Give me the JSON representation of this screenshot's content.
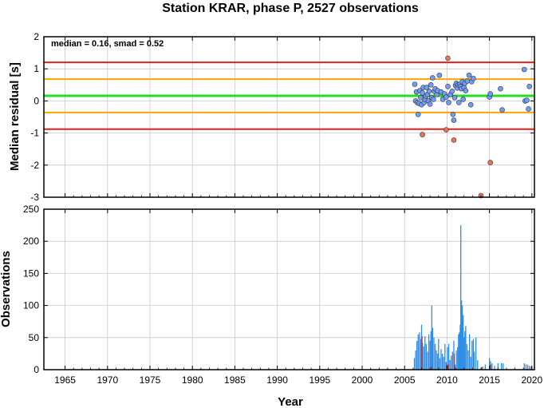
{
  "chart_data": [
    {
      "type": "scatter",
      "title": "Station KRAR, phase P, 2527 observations",
      "ylabel": "Median residual [s]",
      "xlabel": "",
      "annotation": "median = 0.16, smad = 0.52",
      "xlim": [
        1962.5,
        2020.3
      ],
      "ylim": [
        -3,
        2
      ],
      "xticks": [
        "1965",
        "1970",
        "1975",
        "1980",
        "1985",
        "1990",
        "1995",
        "2000",
        "2005",
        "2010",
        "2015",
        "2020"
      ],
      "yticks": [
        "-3",
        "-2",
        "-1",
        "0",
        "1",
        "2"
      ],
      "grid": true,
      "reference_lines": [
        {
          "y": 1.2,
          "color": "#e3201c"
        },
        {
          "y": 0.68,
          "color": "#ffa500"
        },
        {
          "y": 0.16,
          "color": "#22dd22"
        },
        {
          "y": -0.36,
          "color": "#ffa500"
        },
        {
          "y": -0.88,
          "color": "#e3201c"
        }
      ],
      "series": [
        {
          "color": "#6f9ef8",
          "x": [
            2006.2,
            2006.3,
            2006.4,
            2006.5,
            2006.6,
            2006.7,
            2006.8,
            2006.9,
            2007.0,
            2007.1,
            2007.2,
            2007.3,
            2007.4,
            2007.5,
            2007.6,
            2007.7,
            2007.8,
            2007.9,
            2008.0,
            2008.1,
            2008.2,
            2008.3,
            2008.4,
            2008.5,
            2008.6,
            2008.8,
            2008.9,
            2009.1,
            2009.3,
            2009.5,
            2009.7,
            2009.9,
            2010.1,
            2010.2,
            2010.4,
            2010.6,
            2010.7,
            2010.8,
            2010.9,
            2011.0,
            2011.1,
            2011.2,
            2011.3,
            2011.4,
            2011.5,
            2011.6,
            2011.7,
            2011.8,
            2011.9,
            2012.0,
            2012.1,
            2012.2,
            2012.4,
            2012.6,
            2012.8,
            2012.9,
            2013.1,
            2015.0,
            2015.1,
            2016.3,
            2016.5,
            2019.1,
            2019.2,
            2019.4,
            2019.6,
            2019.7
          ],
          "y": [
            0.52,
            0.0,
            0.28,
            -0.05,
            -0.42,
            -0.08,
            0.32,
            0.1,
            -0.12,
            0.25,
            0.42,
            -0.05,
            0.05,
            0.15,
            0.42,
            0.2,
            0.0,
            0.3,
            -0.1,
            0.5,
            0.1,
            0.72,
            0.05,
            0.3,
            0.38,
            0.2,
            0.32,
            0.8,
            0.28,
            0.05,
            0.22,
            0.12,
            0.45,
            -0.05,
            0.2,
            0.3,
            -0.42,
            -0.6,
            0.1,
            0.48,
            0.55,
            0.4,
            0.5,
            -0.05,
            0.52,
            0.45,
            0.38,
            0.6,
            0.05,
            0.42,
            0.55,
            0.32,
            0.62,
            0.8,
            -0.12,
            0.6,
            0.7,
            0.12,
            0.22,
            0.38,
            -0.28,
            0.98,
            0.0,
            0.02,
            -0.25,
            0.45
          ]
        },
        {
          "color": "#f0705a",
          "x": [
            2007.1,
            2009.9,
            2010.1,
            2010.8,
            2014.0,
            2015.1
          ],
          "y": [
            -1.05,
            -0.9,
            1.33,
            -1.22,
            -2.95,
            -1.92
          ]
        }
      ]
    },
    {
      "type": "bar",
      "title": "",
      "xlabel": "Year",
      "ylabel": "Observations",
      "xlim": [
        1962.5,
        2020.3
      ],
      "ylim": [
        0,
        250
      ],
      "xticks": [
        "1965",
        "1970",
        "1975",
        "1980",
        "1985",
        "1990",
        "1995",
        "2000",
        "2005",
        "2010",
        "2015",
        "2020"
      ],
      "yticks": [
        "0",
        "50",
        "100",
        "150",
        "200",
        "250"
      ],
      "grid": true,
      "series": [
        {
          "color": "#2d8de6",
          "x": [
            2006.15,
            2006.3,
            2006.45,
            2006.6,
            2006.75,
            2006.9,
            2007.0,
            2007.1,
            2007.25,
            2007.4,
            2007.55,
            2007.7,
            2007.85,
            2008.0,
            2008.1,
            2008.2,
            2008.3,
            2008.45,
            2008.6,
            2008.75,
            2008.9,
            2009.0,
            2009.15,
            2009.3,
            2009.45,
            2009.6,
            2009.75,
            2009.9,
            2010.05,
            2010.2,
            2010.35,
            2010.5,
            2010.65,
            2010.8,
            2010.95,
            2011.1,
            2011.25,
            2011.35,
            2011.45,
            2011.55,
            2011.62,
            2011.7,
            2011.8,
            2011.9,
            2012.0,
            2012.1,
            2012.2,
            2012.35,
            2012.5,
            2012.65,
            2012.8,
            2012.95,
            2013.1,
            2013.2,
            2013.4,
            2013.6,
            2014.2,
            2014.5,
            2015.0,
            2015.1,
            2015.3,
            2015.6,
            2016.0,
            2016.4,
            2016.6,
            2019.1,
            2019.3,
            2019.5,
            2019.7,
            2019.9
          ],
          "values": [
            18,
            30,
            45,
            55,
            58,
            48,
            70,
            42,
            36,
            52,
            40,
            28,
            55,
            45,
            60,
            100,
            65,
            50,
            40,
            30,
            25,
            48,
            18,
            32,
            25,
            20,
            40,
            12,
            35,
            40,
            15,
            22,
            28,
            45,
            8,
            30,
            35,
            55,
            58,
            70,
            225,
            108,
            100,
            85,
            50,
            60,
            68,
            40,
            30,
            55,
            20,
            45,
            48,
            28,
            50,
            15,
            5,
            8,
            18,
            13,
            10,
            6,
            10,
            10,
            10,
            10,
            8,
            8,
            6,
            5
          ]
        },
        {
          "color": "#e3201c",
          "x": [
            2007.05,
            2008.2,
            2009.95,
            2010.15,
            2010.85,
            2014.05,
            2015.15
          ],
          "values": [
            52,
            5,
            8,
            8,
            25,
            4,
            8
          ]
        }
      ]
    }
  ]
}
